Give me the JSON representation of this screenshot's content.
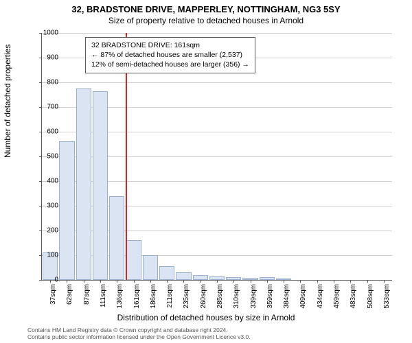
{
  "title": "32, BRADSTONE DRIVE, MAPPERLEY, NOTTINGHAM, NG3 5SY",
  "subtitle": "Size of property relative to detached houses in Arnold",
  "ylabel": "Number of detached properties",
  "xlabel": "Distribution of detached houses by size in Arnold",
  "chart": {
    "type": "bar",
    "bar_fill": "#dbe4f2",
    "bar_border": "#9aaed0",
    "background": "#ffffff",
    "grid_color": "#d0d0d0",
    "marker_color": "#e02020",
    "marker_category_index": 5,
    "ylim": [
      0,
      1000
    ],
    "ytick_step": 100,
    "categories": [
      "37sqm",
      "62sqm",
      "87sqm",
      "111sqm",
      "136sqm",
      "161sqm",
      "186sqm",
      "211sqm",
      "235sqm",
      "260sqm",
      "285sqm",
      "310sqm",
      "339sqm",
      "359sqm",
      "384sqm",
      "409sqm",
      "434sqm",
      "459sqm",
      "483sqm",
      "508sqm",
      "533sqm"
    ],
    "values": [
      110,
      560,
      775,
      765,
      340,
      160,
      100,
      55,
      30,
      20,
      15,
      10,
      8,
      12,
      2,
      0,
      0,
      0,
      0,
      0,
      0
    ]
  },
  "infobox": {
    "line1": "32 BRADSTONE DRIVE: 161sqm",
    "line2": "← 87% of detached houses are smaller (2,537)",
    "line3": "12% of semi-detached houses are larger (356) →"
  },
  "credit": {
    "line1": "Contains HM Land Registry data © Crown copyright and database right 2024.",
    "line2": "Contains public sector information licensed under the Open Government Licence v3.0."
  }
}
